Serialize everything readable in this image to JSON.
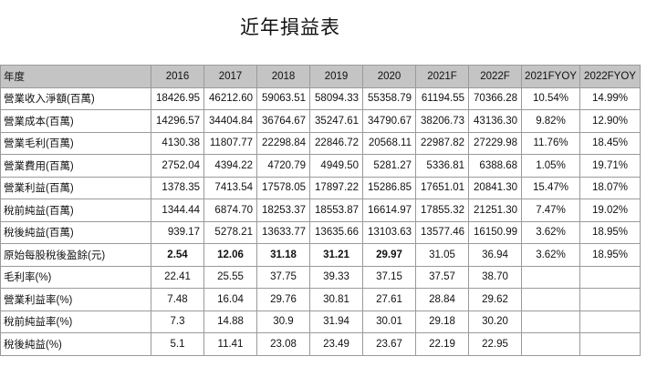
{
  "title": "近年損益表",
  "header": [
    "年度",
    "2016",
    "2017",
    "2018",
    "2019",
    "2020",
    "2021F",
    "2022F",
    "2021FYOY",
    "2022FYOY"
  ],
  "rows": [
    {
      "label": "營業收入淨額(百萬)",
      "values": [
        "18426.95",
        "46212.60",
        "59063.51",
        "58094.33",
        "55358.79",
        "61194.55",
        "70366.28",
        "10.54%",
        "14.99%"
      ]
    },
    {
      "label": "營業成本(百萬)",
      "values": [
        "14296.57",
        "34404.84",
        "36764.67",
        "35247.61",
        "34790.67",
        "38206.73",
        "43136.30",
        "9.82%",
        "12.90%"
      ]
    },
    {
      "label": "營業毛利(百萬)",
      "values": [
        "4130.38",
        "11807.77",
        "22298.84",
        "22846.72",
        "20568.11",
        "22987.82",
        "27229.98",
        "11.76%",
        "18.45%"
      ]
    },
    {
      "label": "營業費用(百萬)",
      "values": [
        "2752.04",
        "4394.22",
        "4720.79",
        "4949.50",
        "5281.27",
        "5336.81",
        "6388.68",
        "1.05%",
        "19.71%"
      ]
    },
    {
      "label": "營業利益(百萬)",
      "values": [
        "1378.35",
        "7413.54",
        "17578.05",
        "17897.22",
        "15286.85",
        "17651.01",
        "20841.30",
        "15.47%",
        "18.07%"
      ]
    },
    {
      "label": "稅前純益(百萬)",
      "values": [
        "1344.44",
        "6874.70",
        "18253.37",
        "18553.87",
        "16614.97",
        "17855.32",
        "21251.30",
        "7.47%",
        "19.02%"
      ]
    },
    {
      "label": "稅後純益(百萬)",
      "values": [
        "939.17",
        "5278.21",
        "13633.77",
        "13635.66",
        "13103.63",
        "13577.46",
        "16150.99",
        "3.62%",
        "18.95%"
      ]
    },
    {
      "label": "原始每股稅後盈餘(元)",
      "values": [
        "2.54",
        "12.06",
        "31.18",
        "31.21",
        "29.97",
        "31.05",
        "36.94",
        "3.62%",
        "18.95%"
      ]
    },
    {
      "label": "毛利率(%)",
      "values": [
        "22.41",
        "25.55",
        "37.75",
        "39.33",
        "37.15",
        "37.57",
        "38.70",
        "",
        ""
      ]
    },
    {
      "label": "營業利益率(%)",
      "values": [
        "7.48",
        "16.04",
        "29.76",
        "30.81",
        "27.61",
        "28.84",
        "29.62",
        "",
        ""
      ]
    },
    {
      "label": "稅前純益率(%)",
      "values": [
        "7.3",
        "14.88",
        "30.9",
        "31.94",
        "30.01",
        "29.18",
        "30.20",
        "",
        ""
      ]
    },
    {
      "label": "稅後純益(%)",
      "values": [
        "5.1",
        "11.41",
        "23.08",
        "23.49",
        "23.67",
        "22.19",
        "22.95",
        "",
        ""
      ]
    }
  ]
}
